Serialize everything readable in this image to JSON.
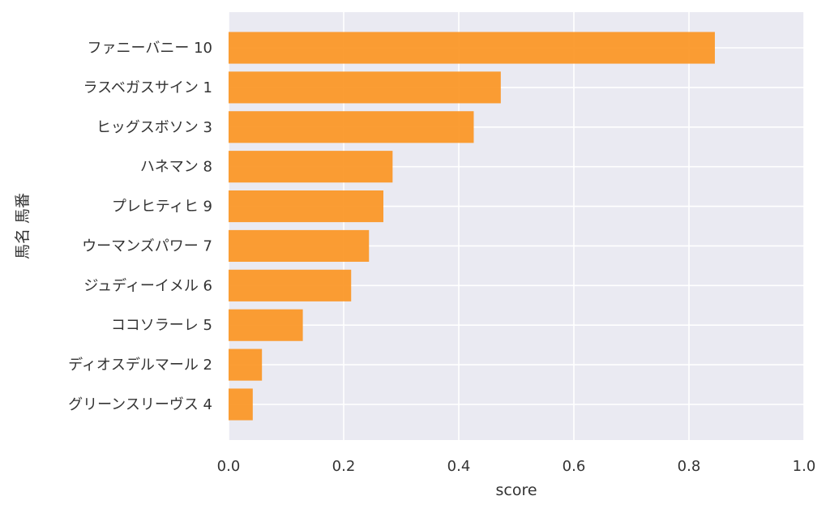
{
  "chart_data": {
    "type": "bar",
    "orientation": "horizontal",
    "categories": [
      "ファニーバニー 10",
      "ラスベガスサイン 1",
      "ヒッグスボソン 3",
      "ハネマン 8",
      "プレヒティヒ 9",
      "ウーマンズパワー 7",
      "ジュディーイメル 6",
      "ココソラーレ 5",
      "ディオスデルマール 2",
      "グリーンスリーヴス 4"
    ],
    "values": [
      0.845,
      0.473,
      0.426,
      0.285,
      0.269,
      0.244,
      0.213,
      0.129,
      0.058,
      0.042
    ],
    "xlabel": "score",
    "ylabel": "馬名 馬番",
    "xlim": [
      0,
      1.0
    ],
    "xticks": [
      "0.0",
      "0.2",
      "0.4",
      "0.6",
      "0.8",
      "1.0"
    ],
    "grid": true,
    "bar_color": "#fb9523",
    "background_color": "#eaeaf2"
  }
}
